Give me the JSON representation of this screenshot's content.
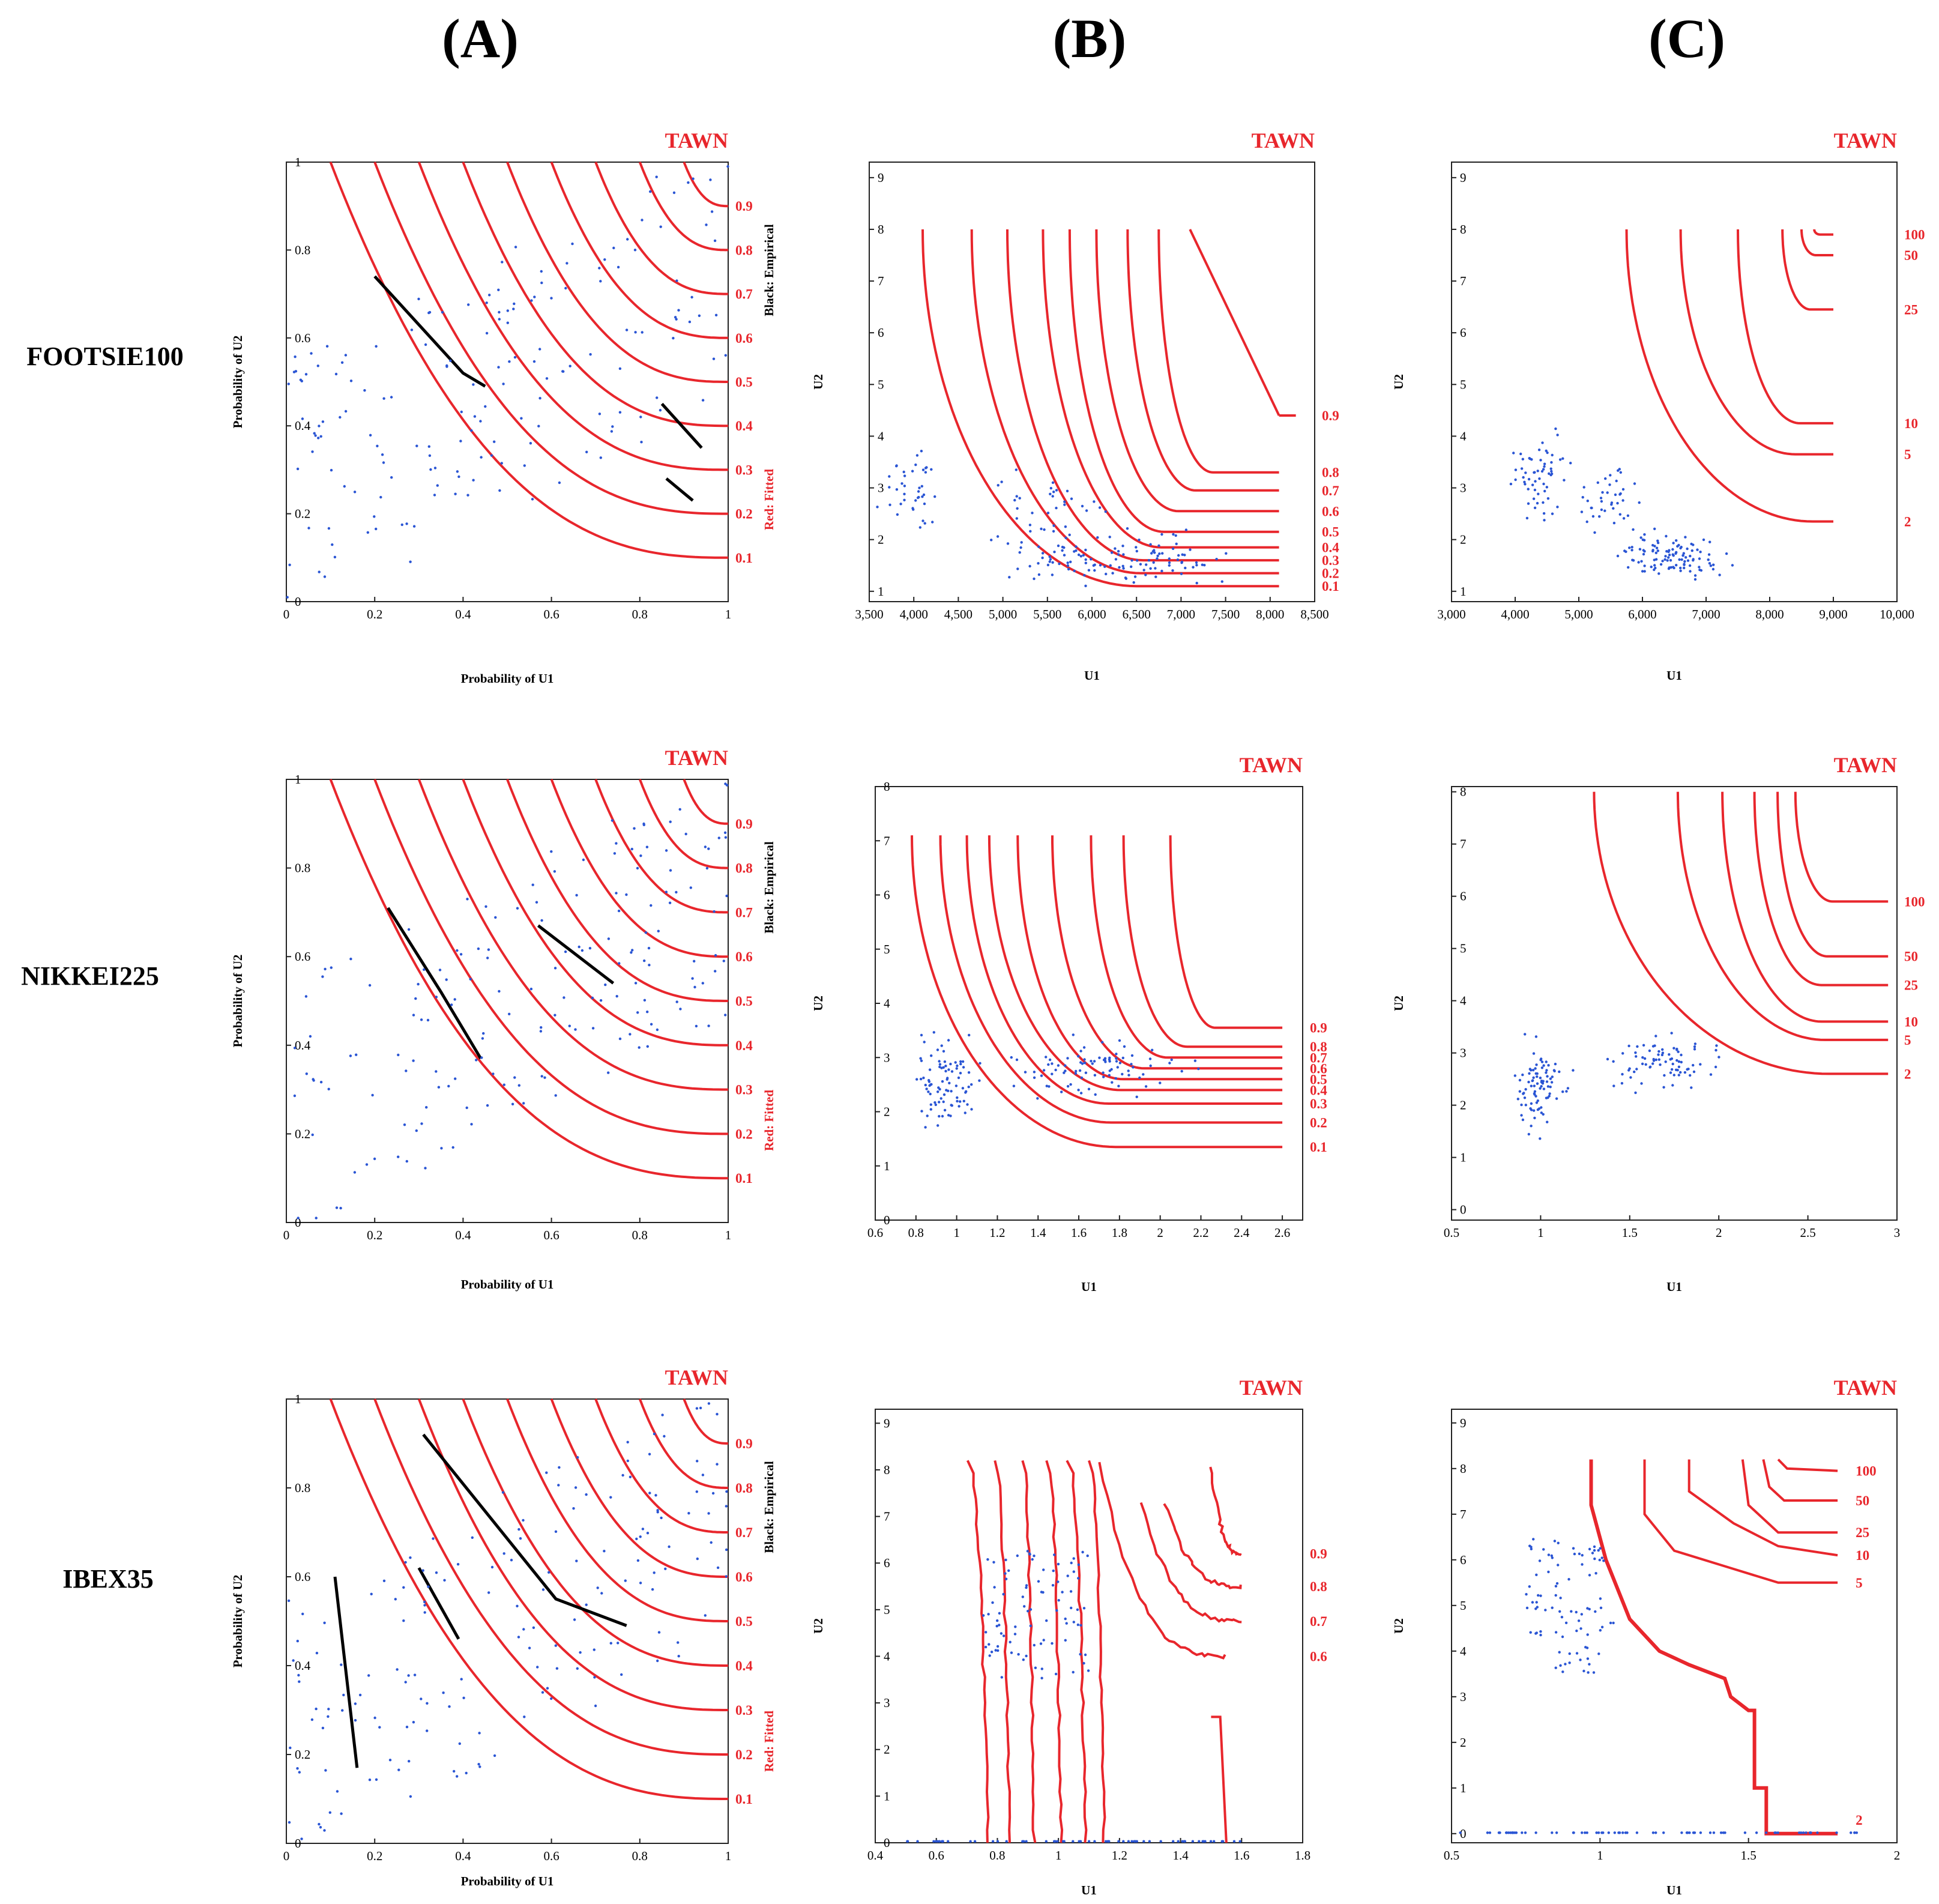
{
  "column_headers": [
    "(A)",
    "(B)",
    "(C)"
  ],
  "row_labels": [
    "FOOTSIE100",
    "NIKKEI225",
    "IBEX35"
  ],
  "colors": {
    "fitted": "#e8262c",
    "empirical": "#000000",
    "points": "#2a55d4",
    "frame": "#222222"
  },
  "chart_data": [
    {
      "id": "A1",
      "type": "line",
      "title": "TAWN",
      "xlabel": "Probability of U1",
      "ylabel": "Probability of U2",
      "xlim": [
        0,
        1
      ],
      "ylim": [
        0,
        1
      ],
      "x_ticks": [
        "0",
        "0.2",
        "0.4",
        "0.6",
        "0.8",
        "1"
      ],
      "y_ticks": [
        "0",
        "0.2",
        "0.4",
        "0.6",
        "0.8",
        "1"
      ],
      "side_label_red": "Red: Fitted",
      "side_label_black": "Black: Empirical",
      "contour_levels": [
        "0.1",
        "0.2",
        "0.3",
        "0.4",
        "0.5",
        "0.6",
        "0.7",
        "0.8",
        "0.9"
      ],
      "empirical_segments": [
        [
          [
            0.2,
            0.74
          ],
          [
            0.4,
            0.52
          ],
          [
            0.45,
            0.49
          ]
        ],
        [
          [
            0.85,
            0.45
          ],
          [
            0.94,
            0.35
          ]
        ],
        [
          [
            0.86,
            0.28
          ],
          [
            0.92,
            0.23
          ]
        ]
      ]
    },
    {
      "id": "B1",
      "type": "line",
      "title": "TAWN",
      "xlabel": "U1",
      "ylabel": "U2",
      "xlim": [
        3500,
        8500
      ],
      "ylim": [
        0.8,
        9.3
      ],
      "x_ticks": [
        "3,500",
        "4,000",
        "4,500",
        "5,000",
        "5,500",
        "6,000",
        "6,500",
        "7,000",
        "7,500",
        "8,000",
        "8,500"
      ],
      "y_ticks": [
        "1",
        "2",
        "3",
        "4",
        "5",
        "6",
        "7",
        "8",
        "9"
      ],
      "contour_levels": [
        "0.1",
        "0.2",
        "0.3",
        "0.4",
        "0.5",
        "0.6",
        "0.7",
        "0.8",
        "0.9"
      ],
      "contours": [
        {
          "level": "0.1",
          "x0": 4100,
          "y0": 1.1,
          "elbow": 0.6
        },
        {
          "level": "0.2",
          "x0": 4650,
          "y0": 1.35,
          "elbow": 0.55
        },
        {
          "level": "0.3",
          "x0": 5050,
          "y0": 1.6,
          "elbow": 0.5
        },
        {
          "level": "0.4",
          "x0": 5450,
          "y0": 1.85,
          "elbow": 0.5
        },
        {
          "level": "0.5",
          "x0": 5750,
          "y0": 2.15,
          "elbow": 0.45
        },
        {
          "level": "0.6",
          "x0": 6050,
          "y0": 2.55,
          "elbow": 0.45
        },
        {
          "level": "0.7",
          "x0": 6400,
          "y0": 2.95,
          "elbow": 0.45
        },
        {
          "level": "0.8",
          "x0": 6750,
          "y0": 3.3,
          "elbow": 0.45
        }
      ],
      "diagonal_contour": {
        "level": "0.9",
        "from": [
          7100,
          8.0
        ],
        "to": [
          8100,
          4.4
        ]
      }
    },
    {
      "id": "C1",
      "type": "line",
      "title": "TAWN",
      "xlabel": "U1",
      "ylabel": "U2",
      "xlim": [
        3000,
        10000
      ],
      "ylim": [
        0.8,
        9.3
      ],
      "x_ticks": [
        "3,000",
        "4,000",
        "5,000",
        "6,000",
        "7,000",
        "8,000",
        "9,000",
        "10,000"
      ],
      "y_ticks": [
        "1",
        "2",
        "3",
        "4",
        "5",
        "6",
        "7",
        "8",
        "9"
      ],
      "contour_levels": [
        "2",
        "5",
        "10",
        "25",
        "50",
        "100"
      ],
      "contours": [
        {
          "level": "2",
          "x0": 5750,
          "y0": 2.35,
          "elbow": 0.9
        },
        {
          "level": "5",
          "x0": 6600,
          "y0": 3.65,
          "elbow": 0.75
        },
        {
          "level": "10",
          "x0": 7500,
          "y0": 4.25,
          "elbow": 0.65
        },
        {
          "level": "25",
          "x0": 8200,
          "y0": 6.45,
          "elbow": 0.55
        },
        {
          "level": "50",
          "x0": 8500,
          "y0": 7.5,
          "elbow": 0.45
        },
        {
          "level": "100",
          "x0": 8700,
          "y0": 7.9,
          "elbow": 0.3
        }
      ]
    },
    {
      "id": "A2",
      "type": "line",
      "title": "TAWN",
      "xlabel": "Probability of U1",
      "ylabel": "Probability of U2",
      "xlim": [
        0,
        1
      ],
      "ylim": [
        0,
        1
      ],
      "x_ticks": [
        "0",
        "0.2",
        "0.4",
        "0.6",
        "0.8",
        "1"
      ],
      "y_ticks": [
        "0",
        "0.2",
        "0.4",
        "0.6",
        "0.8",
        "1"
      ],
      "side_label_red": "Red: Fitted",
      "side_label_black": "Black: Empirical",
      "contour_levels": [
        "0.1",
        "0.2",
        "0.3",
        "0.4",
        "0.5",
        "0.6",
        "0.7",
        "0.8",
        "0.9"
      ],
      "empirical_segments": [
        [
          [
            0.23,
            0.71
          ],
          [
            0.35,
            0.52
          ],
          [
            0.44,
            0.37
          ]
        ],
        [
          [
            0.57,
            0.67
          ],
          [
            0.74,
            0.54
          ]
        ]
      ]
    },
    {
      "id": "B2",
      "type": "line",
      "title": "TAWN",
      "xlabel": "U1",
      "ylabel": "U2",
      "xlim": [
        0.6,
        2.7
      ],
      "ylim": [
        0,
        8
      ],
      "x_ticks": [
        "0.6",
        "0.8",
        "1",
        "1.2",
        "1.4",
        "1.6",
        "1.8",
        "2",
        "2.2",
        "2.4",
        "2.6"
      ],
      "y_ticks": [
        "0",
        "1",
        "2",
        "3",
        "4",
        "5",
        "6",
        "7",
        "8"
      ],
      "contour_levels": [
        "0.1",
        "0.2",
        "0.3",
        "0.4",
        "0.5",
        "0.6",
        "0.7",
        "0.8",
        "0.9"
      ],
      "contours": [
        {
          "level": "0.1",
          "x0": 0.78,
          "y0": 1.35,
          "elbow": 0.55
        },
        {
          "level": "0.2",
          "x0": 0.92,
          "y0": 1.8,
          "elbow": 0.5
        },
        {
          "level": "0.3",
          "x0": 1.05,
          "y0": 2.15,
          "elbow": 0.45
        },
        {
          "level": "0.4",
          "x0": 1.16,
          "y0": 2.4,
          "elbow": 0.45
        },
        {
          "level": "0.5",
          "x0": 1.3,
          "y0": 2.6,
          "elbow": 0.4
        },
        {
          "level": "0.6",
          "x0": 1.47,
          "y0": 2.8,
          "elbow": 0.4
        },
        {
          "level": "0.7",
          "x0": 1.66,
          "y0": 3.0,
          "elbow": 0.4
        },
        {
          "level": "0.8",
          "x0": 1.82,
          "y0": 3.2,
          "elbow": 0.4
        },
        {
          "level": "0.9",
          "x0": 2.05,
          "y0": 3.55,
          "elbow": 0.4
        }
      ]
    },
    {
      "id": "C2",
      "type": "line",
      "title": "TAWN",
      "xlabel": "U1",
      "ylabel": "U2",
      "xlim": [
        0.5,
        3.0
      ],
      "ylim": [
        -0.2,
        8.1
      ],
      "x_ticks": [
        "0.5",
        "1",
        "1.5",
        "2",
        "2.5",
        "3"
      ],
      "y_ticks": [
        "0",
        "1",
        "2",
        "3",
        "4",
        "5",
        "6",
        "7",
        "8"
      ],
      "contour_levels": [
        "2",
        "5",
        "10",
        "25",
        "50",
        "100"
      ],
      "contours": [
        {
          "level": "2",
          "x0": 1.3,
          "y0": 2.6,
          "elbow": 0.8
        },
        {
          "level": "5",
          "x0": 1.77,
          "y0": 3.25,
          "elbow": 0.7
        },
        {
          "level": "10",
          "x0": 2.02,
          "y0": 3.6,
          "elbow": 0.6
        },
        {
          "level": "25",
          "x0": 2.2,
          "y0": 4.3,
          "elbow": 0.5
        },
        {
          "level": "50",
          "x0": 2.33,
          "y0": 4.85,
          "elbow": 0.45
        },
        {
          "level": "100",
          "x0": 2.43,
          "y0": 5.9,
          "elbow": 0.4
        }
      ]
    },
    {
      "id": "A3",
      "type": "line",
      "title": "TAWN",
      "xlabel": "Probability of U1",
      "ylabel": "Probability of U2",
      "xlim": [
        0,
        1
      ],
      "ylim": [
        0,
        1
      ],
      "x_ticks": [
        "0",
        "0.2",
        "0.4",
        "0.6",
        "0.8",
        "1"
      ],
      "y_ticks": [
        "0",
        "0.2",
        "0.4",
        "0.6",
        "0.8",
        "1"
      ],
      "side_label_red": "Red: Fitted",
      "side_label_black": "Black: Empirical",
      "contour_levels": [
        "0.1",
        "0.2",
        "0.3",
        "0.4",
        "0.5",
        "0.6",
        "0.7",
        "0.8",
        "0.9"
      ],
      "empirical_segments": [
        [
          [
            0.11,
            0.6
          ],
          [
            0.16,
            0.17
          ]
        ],
        [
          [
            0.3,
            0.62
          ],
          [
            0.39,
            0.46
          ]
        ],
        [
          [
            0.31,
            0.92
          ],
          [
            0.61,
            0.55
          ],
          [
            0.77,
            0.49
          ]
        ]
      ]
    },
    {
      "id": "B3",
      "type": "line",
      "title": "TAWN",
      "xlabel": "U1",
      "ylabel": "U2",
      "xlim": [
        0.4,
        1.8
      ],
      "ylim": [
        0,
        9.3
      ],
      "x_ticks": [
        "0.4",
        "0.6",
        "0.8",
        "1",
        "1.2",
        "1.4",
        "1.6",
        "1.8"
      ],
      "y_ticks": [
        "0",
        "1",
        "2",
        "3",
        "4",
        "5",
        "6",
        "7",
        "8",
        "9"
      ],
      "contour_levels": [
        "0.6",
        "0.7",
        "0.8",
        "0.9"
      ],
      "vertical_lines": [
        [
          0.7,
          0.77
        ],
        [
          0.79,
          0.84
        ],
        [
          0.88,
          0.92
        ],
        [
          0.96,
          1.01
        ],
        [
          1.03,
          1.09
        ],
        [
          1.1,
          1.15
        ]
      ],
      "contours": [
        {
          "level": "0.6",
          "x0": 1.13,
          "y0": 4.0
        },
        {
          "level": "0.7",
          "x0": 1.27,
          "y0": 4.75
        },
        {
          "level": "0.8",
          "x0": 1.35,
          "y0": 5.5
        },
        {
          "level": "0.9",
          "x0": 1.5,
          "y0": 6.2
        }
      ]
    },
    {
      "id": "C3",
      "type": "line",
      "title": "TAWN",
      "xlabel": "U1",
      "ylabel": "U2",
      "xlim": [
        0.5,
        2.0
      ],
      "ylim": [
        -0.2,
        9.3
      ],
      "x_ticks": [
        "0.5",
        "1",
        "1.5",
        "2"
      ],
      "y_ticks": [
        "0",
        "1",
        "2",
        "3",
        "4",
        "5",
        "6",
        "7",
        "8",
        "9"
      ],
      "contour_levels": [
        "2",
        "5",
        "10",
        "25",
        "50",
        "100"
      ]
    }
  ]
}
